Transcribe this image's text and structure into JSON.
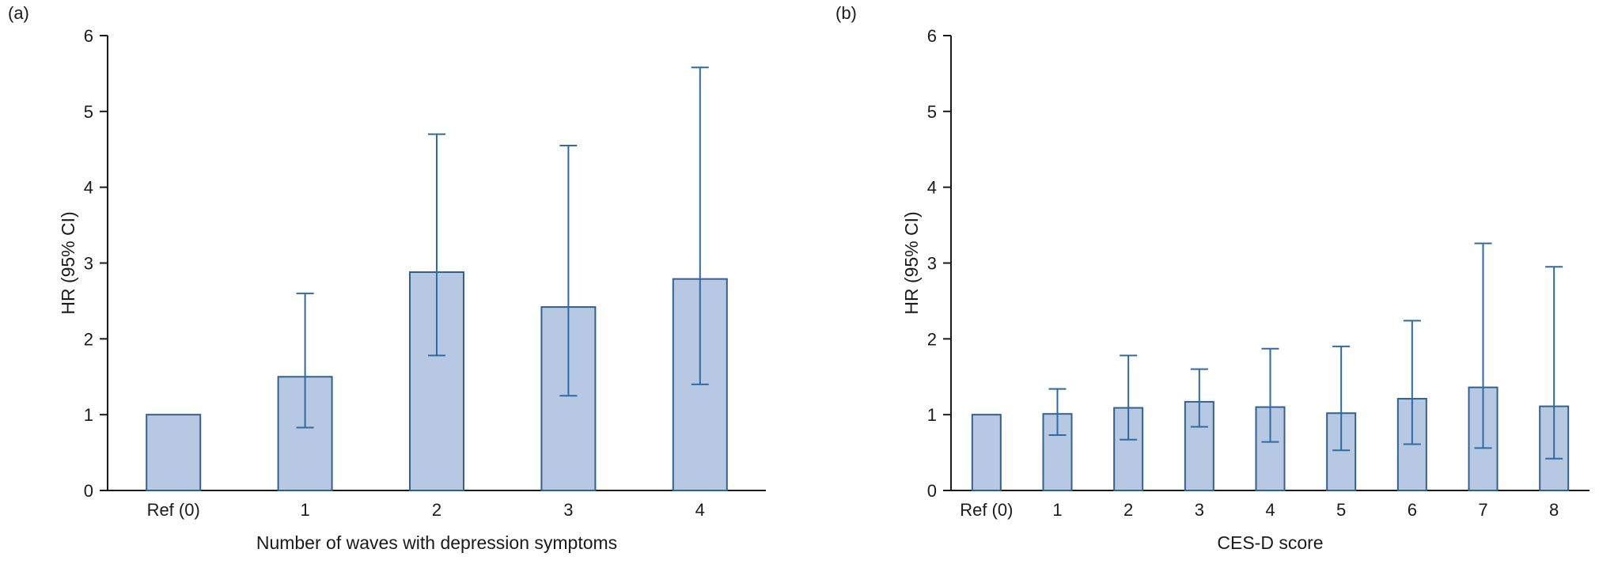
{
  "figure": {
    "background": "#ffffff"
  },
  "colors": {
    "bar_fill": "#b7c9e2",
    "bar_stroke": "#30618f",
    "error_bar": "#2e6aa3",
    "axis": "#1a1a1a"
  },
  "chart_data": [
    {
      "type": "bar",
      "panel_label": "(a)",
      "title": "",
      "xlabel": "Number of waves with depression symptoms",
      "ylabel": "HR (95% CI)",
      "ylim": [
        0,
        6
      ],
      "yticks": [
        0,
        1,
        2,
        3,
        4,
        5,
        6
      ],
      "grid": false,
      "legend": "none",
      "error_bars": true,
      "categories": [
        "Ref (0)",
        "1",
        "2",
        "3",
        "4"
      ],
      "values": [
        1.0,
        1.5,
        2.88,
        2.42,
        2.79
      ],
      "ci_low": [
        null,
        0.83,
        1.78,
        1.25,
        1.4
      ],
      "ci_high": [
        null,
        2.6,
        4.7,
        4.55,
        5.58
      ]
    },
    {
      "type": "bar",
      "panel_label": "(b)",
      "title": "",
      "xlabel": "CES-D score",
      "ylabel": "HR (95% CI)",
      "ylim": [
        0,
        6
      ],
      "yticks": [
        0,
        1,
        2,
        3,
        4,
        5,
        6
      ],
      "grid": false,
      "legend": "none",
      "error_bars": true,
      "categories": [
        "Ref (0)",
        "1",
        "2",
        "3",
        "4",
        "5",
        "6",
        "7",
        "8"
      ],
      "values": [
        1.0,
        1.01,
        1.09,
        1.17,
        1.1,
        1.02,
        1.21,
        1.36,
        1.11
      ],
      "ci_low": [
        null,
        0.73,
        0.67,
        0.84,
        0.64,
        0.53,
        0.61,
        0.56,
        0.42
      ],
      "ci_high": [
        null,
        1.34,
        1.78,
        1.6,
        1.87,
        1.9,
        2.24,
        3.26,
        2.95
      ]
    }
  ]
}
